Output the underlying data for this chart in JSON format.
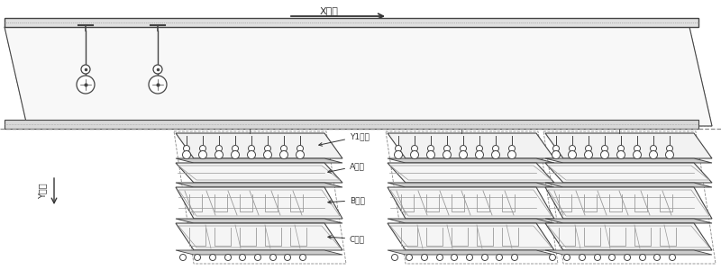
{
  "bg_color": "#ffffff",
  "line_color": "#444444",
  "light_line": "#999999",
  "dash_color": "#888888",
  "text_color": "#333333",
  "x_track_label": "X轨道",
  "y_track_label": "Y轨道",
  "station_a": "A工位",
  "station_b": "B工位",
  "station_c": "C工位",
  "y1_label": "Y1轨道",
  "figsize": [
    8.0,
    3.1
  ],
  "dpi": 100
}
